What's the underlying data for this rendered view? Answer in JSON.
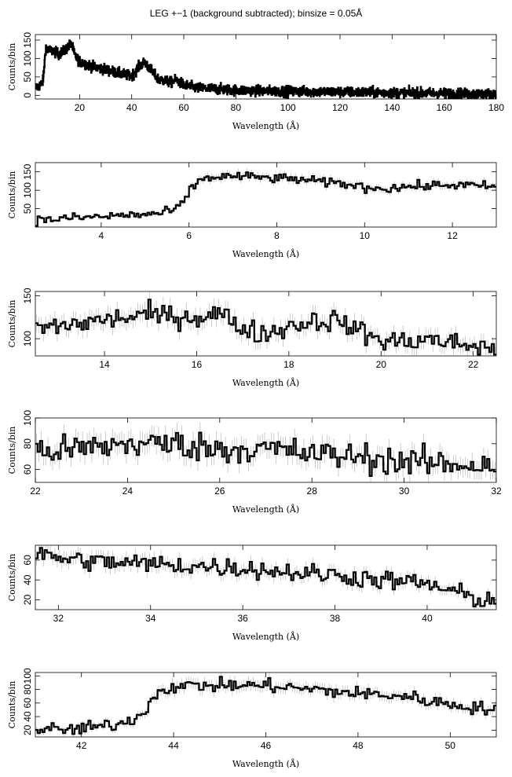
{
  "title": "LEG +−1 (background subtracted); binsize = 0.05Å",
  "chart_data": [
    {
      "type": "line",
      "xlabel": "Wavelength (Å)",
      "ylabel": "Counts/bin",
      "xlim": [
        3,
        180
      ],
      "ylim": [
        -10,
        165
      ],
      "xticks": [
        20,
        40,
        60,
        80,
        100,
        120,
        140,
        160,
        180
      ],
      "yticks": [
        0,
        50,
        100,
        150
      ],
      "ytick_labels": [
        "0",
        "50",
        "100",
        "150"
      ],
      "step": true,
      "noise": 10,
      "error_bars": false,
      "series": [
        {
          "x": [
            3,
            5,
            6,
            7,
            8,
            10,
            12,
            14,
            16,
            17,
            18,
            20,
            25,
            30,
            35,
            40,
            43,
            45,
            47,
            50,
            55,
            57,
            60,
            65,
            70,
            80,
            90,
            100,
            110,
            120,
            130,
            140,
            150,
            160,
            170,
            180
          ],
          "values": [
            20,
            28,
            40,
            130,
            122,
            120,
            112,
            120,
            135,
            140,
            110,
            92,
            78,
            70,
            60,
            52,
            80,
            90,
            72,
            45,
            35,
            42,
            28,
            20,
            18,
            14,
            12,
            11,
            10,
            9,
            8,
            7,
            6,
            5,
            4,
            3
          ]
        }
      ]
    },
    {
      "type": "line",
      "xlabel": "Wavelength (Å)",
      "ylabel": "Counts/bin",
      "xlim": [
        2.5,
        13
      ],
      "ylim": [
        0,
        175
      ],
      "xticks": [
        4,
        6,
        8,
        10,
        12
      ],
      "yticks": [
        50,
        100,
        150
      ],
      "ytick_labels": [
        "50",
        "100",
        "150"
      ],
      "step": true,
      "noise": 9,
      "error_bars": true,
      "series": [
        {
          "x": [
            2.5,
            3,
            3.5,
            4,
            4.5,
            5,
            5.4,
            5.7,
            5.9,
            6.0,
            6.2,
            6.5,
            7,
            7.5,
            8,
            8.5,
            9,
            9.5,
            10,
            10.5,
            11,
            11.5,
            12,
            12.5,
            13
          ],
          "values": [
            18,
            22,
            26,
            28,
            32,
            34,
            38,
            48,
            70,
            95,
            125,
            135,
            138,
            136,
            132,
            130,
            122,
            118,
            108,
            105,
            110,
            112,
            115,
            112,
            110
          ]
        }
      ]
    },
    {
      "type": "line",
      "xlabel": "Wavelength (Å)",
      "ylabel": "Counts/bin",
      "xlim": [
        12.5,
        22.5
      ],
      "ylim": [
        80,
        155
      ],
      "xticks": [
        14,
        16,
        18,
        20,
        22
      ],
      "yticks": [
        100,
        150
      ],
      "ytick_labels": [
        "100",
        "150"
      ],
      "step": true,
      "noise": 9,
      "error_bars": true,
      "series": [
        {
          "x": [
            12.5,
            13,
            13.5,
            14,
            14.5,
            15,
            15.5,
            16,
            16.5,
            17,
            17.5,
            18,
            18.5,
            19,
            19.5,
            20,
            20.5,
            21,
            21.5,
            22,
            22.5
          ],
          "values": [
            112,
            115,
            118,
            122,
            125,
            128,
            126,
            125,
            130,
            112,
            105,
            115,
            120,
            122,
            110,
            98,
            96,
            100,
            95,
            92,
            88
          ]
        }
      ]
    },
    {
      "type": "line",
      "xlabel": "Wavelength (Å)",
      "ylabel": "Counts/bin",
      "xlim": [
        22,
        32
      ],
      "ylim": [
        50,
        100
      ],
      "xticks": [
        22,
        24,
        26,
        28,
        30,
        32
      ],
      "yticks": [
        60,
        80,
        100
      ],
      "ytick_labels": [
        "60",
        "80",
        "100"
      ],
      "step": true,
      "noise": 8,
      "error_bars": true,
      "series": [
        {
          "x": [
            22,
            23,
            24,
            25,
            26,
            27,
            28,
            29,
            30,
            31,
            32
          ],
          "values": [
            74,
            76,
            80,
            80,
            76,
            76,
            72,
            70,
            66,
            64,
            64
          ]
        }
      ]
    },
    {
      "type": "line",
      "xlabel": "Wavelength (Å)",
      "ylabel": "Counts/bin",
      "xlim": [
        31.5,
        41.5
      ],
      "ylim": [
        10,
        75
      ],
      "xticks": [
        32,
        34,
        36,
        38,
        40
      ],
      "yticks": [
        20,
        40,
        60
      ],
      "ytick_labels": [
        "20",
        "40",
        "60"
      ],
      "step": true,
      "noise": 7,
      "error_bars": true,
      "series": [
        {
          "x": [
            31.5,
            32,
            33,
            34,
            35,
            36,
            37,
            38,
            39,
            40,
            41,
            41.5
          ],
          "values": [
            66,
            62,
            58,
            56,
            54,
            52,
            48,
            45,
            40,
            36,
            22,
            18
          ]
        }
      ]
    },
    {
      "type": "line",
      "xlabel": "Wavelength (Å)",
      "ylabel": "Counts/bin",
      "xlim": [
        41,
        51
      ],
      "ylim": [
        10,
        105
      ],
      "xticks": [
        42,
        44,
        46,
        48,
        50
      ],
      "yticks": [
        20,
        40,
        60,
        80,
        100
      ],
      "ytick_labels": [
        "20",
        "40",
        "60",
        "80",
        "100"
      ],
      "step": true,
      "noise": 7,
      "error_bars": true,
      "series": [
        {
          "x": [
            41,
            41.5,
            42,
            42.5,
            43,
            43.3,
            43.5,
            43.7,
            44,
            44.5,
            45,
            46,
            47,
            48,
            49,
            50,
            51
          ],
          "values": [
            22,
            20,
            22,
            26,
            32,
            45,
            60,
            80,
            84,
            86,
            86,
            86,
            80,
            74,
            70,
            58,
            50
          ]
        }
      ]
    }
  ]
}
